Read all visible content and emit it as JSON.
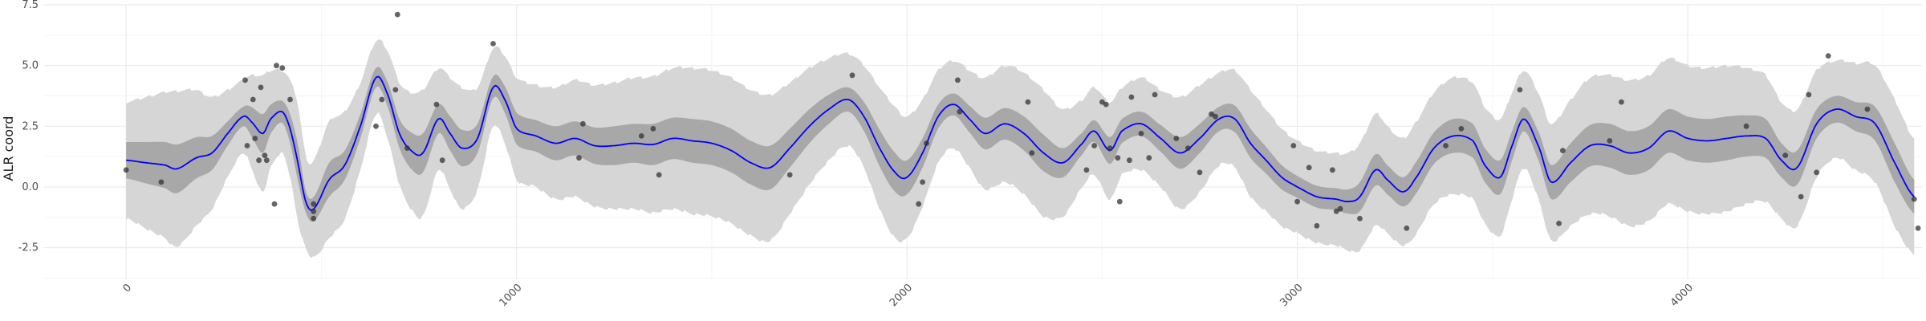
{
  "chart_data": {
    "type": "line",
    "xlabel": "",
    "ylabel": "ALR coord",
    "xlim": [
      -210,
      4600
    ],
    "ylim": [
      -3.8,
      7.5
    ],
    "x_ticks": [
      0,
      1000,
      2000,
      3000,
      4000
    ],
    "x_tick_labels": [
      "0",
      "1000",
      "2000",
      "3000",
      "4000"
    ],
    "y_ticks": [
      -2.5,
      0.0,
      2.5,
      5.0,
      7.5
    ],
    "y_tick_labels": [
      "-2.5",
      "0.0",
      "2.5",
      "5.0",
      "7.5"
    ],
    "grid": true,
    "colors": {
      "mean_line": "#0000ff",
      "inner_band": "#a8a8a8",
      "outer_band": "#d6d6d6",
      "points": "#333333",
      "grid_major": "#ebebeb",
      "grid_minor": "#f5f5f5"
    },
    "series": [
      {
        "role": "posterior_mean",
        "x": [
          0,
          50,
          100,
          130,
          180,
          220,
          260,
          300,
          320,
          350,
          370,
          400,
          420,
          440,
          460,
          480,
          520,
          560,
          600,
          640,
          670,
          700,
          730,
          760,
          800,
          830,
          860,
          900,
          940,
          970,
          1000,
          1050,
          1100,
          1150,
          1200,
          1250,
          1300,
          1350,
          1400,
          1450,
          1500,
          1550,
          1600,
          1650,
          1700,
          1750,
          1800,
          1850,
          1890,
          1930,
          1970,
          2000,
          2040,
          2080,
          2120,
          2160,
          2200,
          2250,
          2300,
          2350,
          2400,
          2450,
          2480,
          2520,
          2550,
          2600,
          2650,
          2700,
          2750,
          2800,
          2840,
          2880,
          2920,
          2960,
          3000,
          3050,
          3100,
          3130,
          3160,
          3200,
          3230,
          3270,
          3300,
          3350,
          3400,
          3450,
          3480,
          3520,
          3550,
          3580,
          3620,
          3650,
          3700,
          3750,
          3800,
          3850,
          3900,
          3950,
          4000,
          4050,
          4100,
          4150,
          4200,
          4240,
          4280,
          4330,
          4380,
          4430,
          4480,
          4530,
          4580
        ],
        "y": [
          1.1,
          1.0,
          0.9,
          0.75,
          1.2,
          1.4,
          2.2,
          2.9,
          2.7,
          2.2,
          2.8,
          3.1,
          2.4,
          1.0,
          -0.6,
          -0.9,
          0.3,
          0.9,
          2.5,
          4.5,
          3.8,
          2.2,
          1.5,
          1.4,
          2.8,
          2.2,
          1.6,
          2.0,
          4.1,
          3.6,
          2.4,
          2.1,
          1.8,
          2.0,
          1.7,
          1.7,
          1.8,
          1.75,
          2.0,
          1.9,
          1.8,
          1.5,
          1.0,
          0.8,
          1.6,
          2.5,
          3.2,
          3.6,
          2.9,
          1.6,
          0.6,
          0.4,
          1.4,
          2.9,
          3.4,
          2.8,
          2.2,
          2.6,
          2.2,
          1.4,
          1.0,
          1.8,
          2.3,
          1.5,
          2.3,
          2.6,
          2.0,
          1.4,
          2.0,
          2.8,
          2.8,
          1.8,
          1.1,
          0.4,
          0.0,
          -0.4,
          -0.5,
          -0.6,
          -0.4,
          0.7,
          0.3,
          -0.2,
          0.3,
          1.6,
          2.1,
          1.9,
          0.9,
          0.4,
          1.7,
          2.8,
          1.6,
          0.2,
          1.0,
          1.7,
          1.7,
          1.4,
          1.6,
          2.3,
          2.0,
          1.9,
          2.0,
          2.1,
          2.0,
          1.1,
          0.8,
          2.6,
          3.2,
          2.9,
          2.6,
          1.0,
          -0.4
        ]
      },
      {
        "role": "inner_band_halfwidth",
        "values": [
          0.75,
          0.85,
          0.95,
          1.0,
          0.85,
          0.7,
          0.5,
          0.4,
          0.6,
          0.8,
          0.6,
          0.45,
          0.6,
          0.75,
          0.45,
          0.5,
          0.7,
          0.6,
          0.5,
          0.4,
          0.5,
          0.6,
          0.75,
          0.8,
          0.6,
          0.7,
          0.75,
          0.6,
          0.45,
          0.55,
          0.65,
          0.65,
          0.7,
          0.7,
          0.75,
          0.8,
          0.8,
          0.85,
          0.85,
          0.9,
          0.9,
          0.9,
          0.9,
          0.9,
          0.8,
          0.7,
          0.6,
          0.5,
          0.6,
          0.75,
          0.8,
          0.7,
          0.6,
          0.5,
          0.45,
          0.55,
          0.65,
          0.65,
          0.7,
          0.75,
          0.6,
          0.45,
          0.45,
          0.55,
          0.5,
          0.5,
          0.55,
          0.65,
          0.6,
          0.5,
          0.55,
          0.6,
          0.55,
          0.5,
          0.45,
          0.45,
          0.45,
          0.5,
          0.6,
          0.65,
          0.6,
          0.6,
          0.65,
          0.65,
          0.7,
          0.7,
          0.7,
          0.7,
          0.6,
          0.5,
          0.6,
          0.7,
          0.8,
          0.85,
          0.9,
          0.9,
          0.9,
          0.9,
          0.9,
          0.9,
          0.9,
          0.85,
          0.8,
          0.7,
          0.7,
          0.6,
          0.55,
          0.6,
          0.7,
          0.8,
          0.7
        ]
      },
      {
        "role": "outer_band_halfwidth",
        "values": [
          2.4,
          2.7,
          3.0,
          3.2,
          2.8,
          2.3,
          1.8,
          1.5,
          1.9,
          2.4,
          2.0,
          1.7,
          2.0,
          2.4,
          1.9,
          2.0,
          2.4,
          2.2,
          1.8,
          1.5,
          1.8,
          2.1,
          2.4,
          2.6,
          2.1,
          2.3,
          2.5,
          2.1,
          1.6,
          1.8,
          2.1,
          2.1,
          2.3,
          2.4,
          2.5,
          2.6,
          2.7,
          2.8,
          2.9,
          3.0,
          3.0,
          3.0,
          3.0,
          3.0,
          2.7,
          2.4,
          2.1,
          1.9,
          2.1,
          2.5,
          2.7,
          2.5,
          2.2,
          1.9,
          1.8,
          2.0,
          2.3,
          2.4,
          2.5,
          2.6,
          2.2,
          1.8,
          1.8,
          2.0,
          1.8,
          1.9,
          2.0,
          2.3,
          2.2,
          1.9,
          2.0,
          2.2,
          2.1,
          2.0,
          1.9,
          1.9,
          1.9,
          2.0,
          2.2,
          2.3,
          2.2,
          2.2,
          2.3,
          2.3,
          2.4,
          2.4,
          2.4,
          2.4,
          2.2,
          2.0,
          2.2,
          2.4,
          2.6,
          2.8,
          2.9,
          3.0,
          3.0,
          3.0,
          3.0,
          3.0,
          3.0,
          2.8,
          2.6,
          2.4,
          2.4,
          2.2,
          2.0,
          2.2,
          2.4,
          2.6,
          2.4
        ]
      },
      {
        "role": "observations",
        "points": [
          [
            0,
            0.7
          ],
          [
            90,
            0.2
          ],
          [
            305,
            4.4
          ],
          [
            310,
            1.7
          ],
          [
            325,
            3.6
          ],
          [
            330,
            2.0
          ],
          [
            345,
            4.1
          ],
          [
            340,
            1.1
          ],
          [
            355,
            1.3
          ],
          [
            360,
            1.1
          ],
          [
            385,
            5.0
          ],
          [
            400,
            4.9
          ],
          [
            380,
            -0.7
          ],
          [
            420,
            3.6
          ],
          [
            480,
            -0.7
          ],
          [
            480,
            -1.0
          ],
          [
            480,
            -1.3
          ],
          [
            640,
            2.5
          ],
          [
            655,
            3.6
          ],
          [
            690,
            4.0
          ],
          [
            695,
            7.1
          ],
          [
            720,
            1.6
          ],
          [
            795,
            3.4
          ],
          [
            810,
            1.1
          ],
          [
            940,
            5.9
          ],
          [
            1160,
            1.2
          ],
          [
            1170,
            2.6
          ],
          [
            1320,
            2.1
          ],
          [
            1350,
            2.4
          ],
          [
            1365,
            0.5
          ],
          [
            1700,
            0.5
          ],
          [
            1860,
            4.6
          ],
          [
            2030,
            -0.7
          ],
          [
            2040,
            0.2
          ],
          [
            2050,
            1.8
          ],
          [
            2130,
            4.4
          ],
          [
            2135,
            3.1
          ],
          [
            2310,
            3.5
          ],
          [
            2320,
            1.4
          ],
          [
            2460,
            0.7
          ],
          [
            2480,
            1.7
          ],
          [
            2500,
            3.5
          ],
          [
            2510,
            3.4
          ],
          [
            2520,
            1.6
          ],
          [
            2540,
            1.2
          ],
          [
            2545,
            -0.6
          ],
          [
            2570,
            1.1
          ],
          [
            2575,
            3.7
          ],
          [
            2600,
            2.2
          ],
          [
            2620,
            1.2
          ],
          [
            2635,
            3.8
          ],
          [
            2690,
            2.0
          ],
          [
            2720,
            1.6
          ],
          [
            2750,
            0.6
          ],
          [
            2780,
            3.0
          ],
          [
            2790,
            2.9
          ],
          [
            2990,
            1.7
          ],
          [
            3000,
            -0.6
          ],
          [
            3030,
            0.8
          ],
          [
            3050,
            -1.6
          ],
          [
            3090,
            0.7
          ],
          [
            3100,
            -1.0
          ],
          [
            3110,
            -0.9
          ],
          [
            3160,
            -1.3
          ],
          [
            3280,
            -1.7
          ],
          [
            3380,
            1.7
          ],
          [
            3420,
            2.4
          ],
          [
            3570,
            4.0
          ],
          [
            3680,
            1.5
          ],
          [
            3670,
            -1.5
          ],
          [
            3800,
            1.9
          ],
          [
            3830,
            3.5
          ],
          [
            4150,
            2.5
          ],
          [
            4250,
            1.3
          ],
          [
            4290,
            -0.4
          ],
          [
            4310,
            3.8
          ],
          [
            4330,
            0.6
          ],
          [
            4360,
            5.4
          ],
          [
            4460,
            3.2
          ],
          [
            4580,
            -0.5
          ],
          [
            4590,
            -1.7
          ]
        ]
      }
    ]
  }
}
